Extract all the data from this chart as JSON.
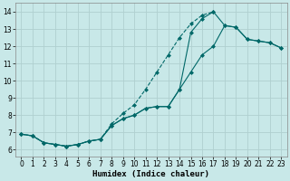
{
  "xlabel": "Humidex (Indice chaleur)",
  "bg_color": "#c8e8e8",
  "grid_color": "#b0d0d0",
  "line_color": "#006868",
  "xlim": [
    -0.5,
    23.5
  ],
  "ylim": [
    5.6,
    14.5
  ],
  "xticks": [
    0,
    1,
    2,
    3,
    4,
    5,
    6,
    7,
    8,
    9,
    10,
    11,
    12,
    13,
    14,
    15,
    16,
    17,
    18,
    19,
    20,
    21,
    22,
    23
  ],
  "yticks": [
    6,
    7,
    8,
    9,
    10,
    11,
    12,
    13,
    14
  ],
  "line1_x": [
    0,
    1,
    2,
    3,
    4,
    5,
    6,
    7,
    8,
    9,
    10,
    11,
    12,
    13,
    14,
    15,
    16,
    17,
    18,
    19,
    20,
    21,
    22,
    23
  ],
  "line1_y": [
    6.9,
    6.8,
    6.4,
    6.3,
    6.2,
    6.3,
    6.5,
    6.6,
    7.4,
    7.8,
    8.0,
    8.4,
    8.5,
    8.5,
    9.5,
    12.8,
    13.6,
    14.0,
    13.2,
    13.1,
    12.4,
    12.3,
    12.2,
    11.9
  ],
  "line2_x": [
    0,
    1,
    2,
    3,
    4,
    5,
    6,
    7,
    8,
    9,
    10,
    11,
    12,
    13,
    14,
    15,
    16,
    17
  ],
  "line2_y": [
    6.9,
    6.8,
    6.4,
    6.3,
    6.2,
    6.3,
    6.5,
    6.6,
    7.5,
    8.1,
    8.6,
    9.5,
    10.5,
    11.5,
    12.5,
    13.3,
    13.8,
    14.0
  ],
  "line3_x": [
    0,
    1,
    2,
    3,
    4,
    5,
    6,
    7,
    8,
    9,
    10,
    11,
    12,
    13,
    14,
    15,
    16,
    17,
    18,
    19,
    20,
    21,
    22,
    23
  ],
  "line3_y": [
    6.9,
    6.8,
    6.4,
    6.3,
    6.2,
    6.3,
    6.5,
    6.6,
    7.4,
    7.8,
    8.0,
    8.4,
    8.5,
    8.5,
    9.5,
    10.5,
    11.5,
    12.0,
    13.2,
    13.1,
    12.4,
    12.3,
    12.2,
    11.9
  ]
}
